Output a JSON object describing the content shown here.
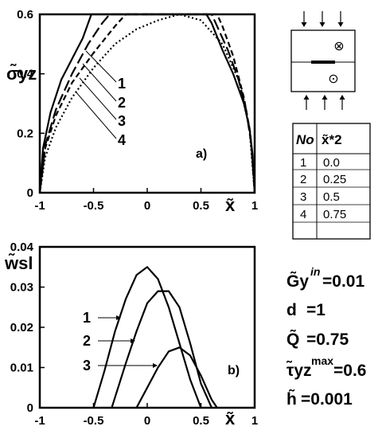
{
  "chart_data": [
    {
      "type": "line",
      "panel": "a)",
      "ylabel": "σ̃yz",
      "xlabel": "x̃",
      "xlim": [
        -1,
        1
      ],
      "ylim": [
        0,
        0.6
      ],
      "xticks": [
        "-1",
        "-0.5",
        "0",
        "0.5",
        "1"
      ],
      "yticks": [
        "0",
        "0.2",
        "0.4",
        "0.6"
      ],
      "series": [
        {
          "name": "1",
          "style": "solid",
          "x": [
            -1,
            -0.97,
            -0.9,
            -0.8,
            -0.7,
            -0.6,
            -0.52,
            0.5,
            0.55,
            0.6,
            0.7,
            0.8,
            0.9,
            0.95,
            0.98,
            1
          ],
          "y": [
            0,
            0.15,
            0.27,
            0.38,
            0.45,
            0.52,
            0.6,
            0.6,
            0.6,
            0.57,
            0.48,
            0.4,
            0.3,
            0.22,
            0.13,
            0
          ]
        },
        {
          "name": "2",
          "style": "longdash",
          "x": [
            -1,
            -0.95,
            -0.85,
            -0.7,
            -0.55,
            -0.42,
            -0.35,
            0.6,
            0.65,
            0.75,
            0.85,
            0.92,
            0.97,
            1
          ],
          "y": [
            0,
            0.16,
            0.28,
            0.4,
            0.5,
            0.57,
            0.6,
            0.6,
            0.56,
            0.48,
            0.38,
            0.28,
            0.16,
            0
          ]
        },
        {
          "name": "3",
          "style": "dash",
          "x": [
            -1,
            -0.95,
            -0.85,
            -0.7,
            -0.5,
            -0.3,
            -0.2,
            0.65,
            0.7,
            0.8,
            0.9,
            0.96,
            1
          ],
          "y": [
            0,
            0.15,
            0.26,
            0.37,
            0.47,
            0.56,
            0.6,
            0.6,
            0.56,
            0.46,
            0.32,
            0.2,
            0
          ]
        },
        {
          "name": "4",
          "style": "dot",
          "x": [
            -1,
            -0.95,
            -0.85,
            -0.7,
            -0.5,
            -0.3,
            -0.1,
            0.1,
            0.3,
            0.5,
            0.7,
            0.85,
            0.95,
            1
          ],
          "y": [
            0,
            0.12,
            0.22,
            0.32,
            0.42,
            0.5,
            0.55,
            0.58,
            0.6,
            0.58,
            0.5,
            0.38,
            0.22,
            0
          ]
        }
      ]
    },
    {
      "type": "line",
      "panel": "b)",
      "ylabel": "w̃sl",
      "xlabel": "x̃",
      "xlim": [
        -1,
        1
      ],
      "ylim": [
        0,
        0.04
      ],
      "xticks": [
        "-1",
        "-0.5",
        "0",
        "0.5",
        "1"
      ],
      "yticks": [
        "0",
        "0.01",
        "0.02",
        "0.03",
        "0.04"
      ],
      "series": [
        {
          "name": "1",
          "x": [
            -0.5,
            -0.4,
            -0.3,
            -0.2,
            -0.1,
            0.0,
            0.1,
            0.2,
            0.3,
            0.4,
            0.5
          ],
          "y": [
            0,
            0.009,
            0.019,
            0.027,
            0.033,
            0.035,
            0.032,
            0.025,
            0.016,
            0.007,
            0
          ]
        },
        {
          "name": "2",
          "x": [
            -0.33,
            -0.2,
            -0.1,
            0.0,
            0.1,
            0.2,
            0.3,
            0.4,
            0.5,
            0.6
          ],
          "y": [
            0,
            0.011,
            0.019,
            0.026,
            0.029,
            0.029,
            0.025,
            0.016,
            0.006,
            0
          ]
        },
        {
          "name": "3",
          "x": [
            -0.1,
            0.0,
            0.1,
            0.2,
            0.3,
            0.4,
            0.5,
            0.6,
            0.65
          ],
          "y": [
            0,
            0.005,
            0.01,
            0.014,
            0.015,
            0.013,
            0.008,
            0.002,
            0
          ]
        }
      ]
    }
  ],
  "inset": {
    "symbols": [
      "⊗",
      "⊙"
    ]
  },
  "table": {
    "headers": [
      "No",
      "x̃*2"
    ],
    "rows": [
      [
        "1",
        "0.0"
      ],
      [
        "2",
        "0.25"
      ],
      [
        "3",
        "0.5"
      ],
      [
        "4",
        "0.75"
      ]
    ]
  },
  "params": [
    {
      "symbol": "G̃y",
      "sup": "in",
      "value": "=0.01"
    },
    {
      "symbol": "d",
      "sup": "",
      "value": "=1"
    },
    {
      "symbol": "Q̃",
      "sup": "",
      "value": "=0.75"
    },
    {
      "symbol": "τ̃yz",
      "sup": "max",
      "value": "=0.6"
    },
    {
      "symbol": "h̃",
      "sup": "",
      "value": "=0.001"
    }
  ]
}
